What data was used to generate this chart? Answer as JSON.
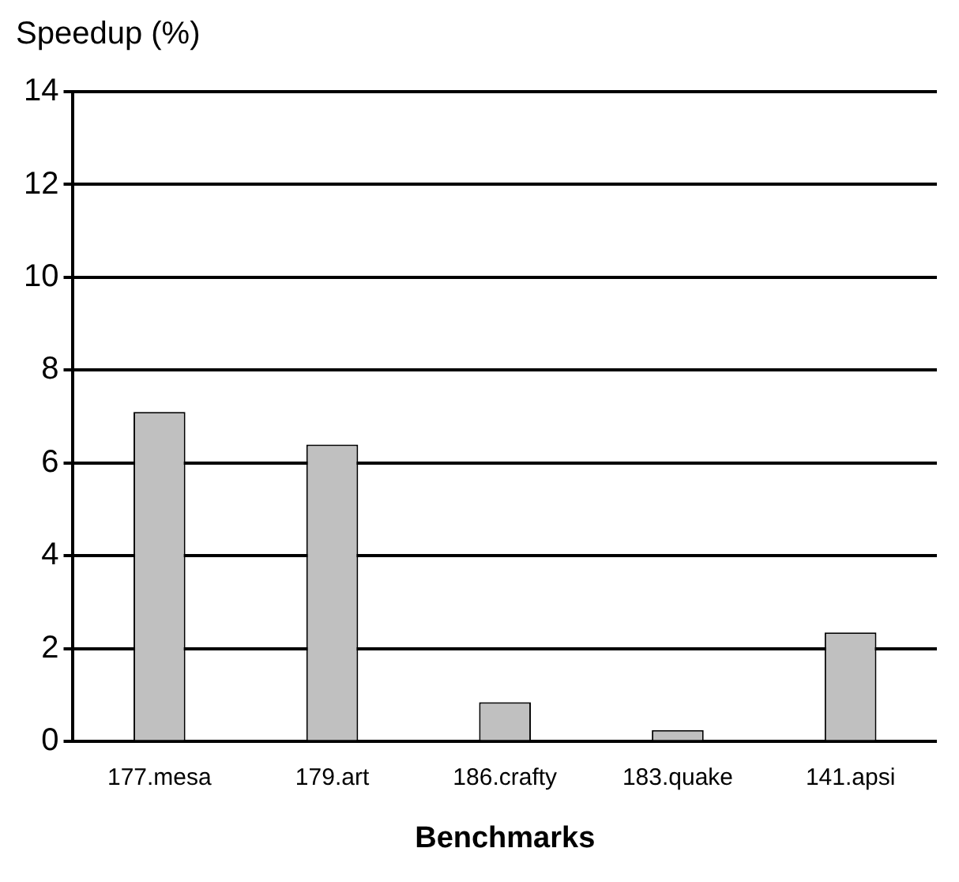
{
  "chart_data": {
    "type": "bar",
    "xlabel": "Benchmarks",
    "ylabel": "Speedup (%)",
    "categories": [
      "177.mesa",
      "179.art",
      "186.crafty",
      "183.quake",
      "141.apsi"
    ],
    "values": [
      7.1,
      6.4,
      0.85,
      0.25,
      2.35
    ],
    "color": "#c0c0c0",
    "ylim": [
      0,
      14
    ],
    "yticks": [
      0,
      2,
      4,
      6,
      8,
      10,
      12,
      14
    ],
    "grid": "y",
    "legend": false
  }
}
